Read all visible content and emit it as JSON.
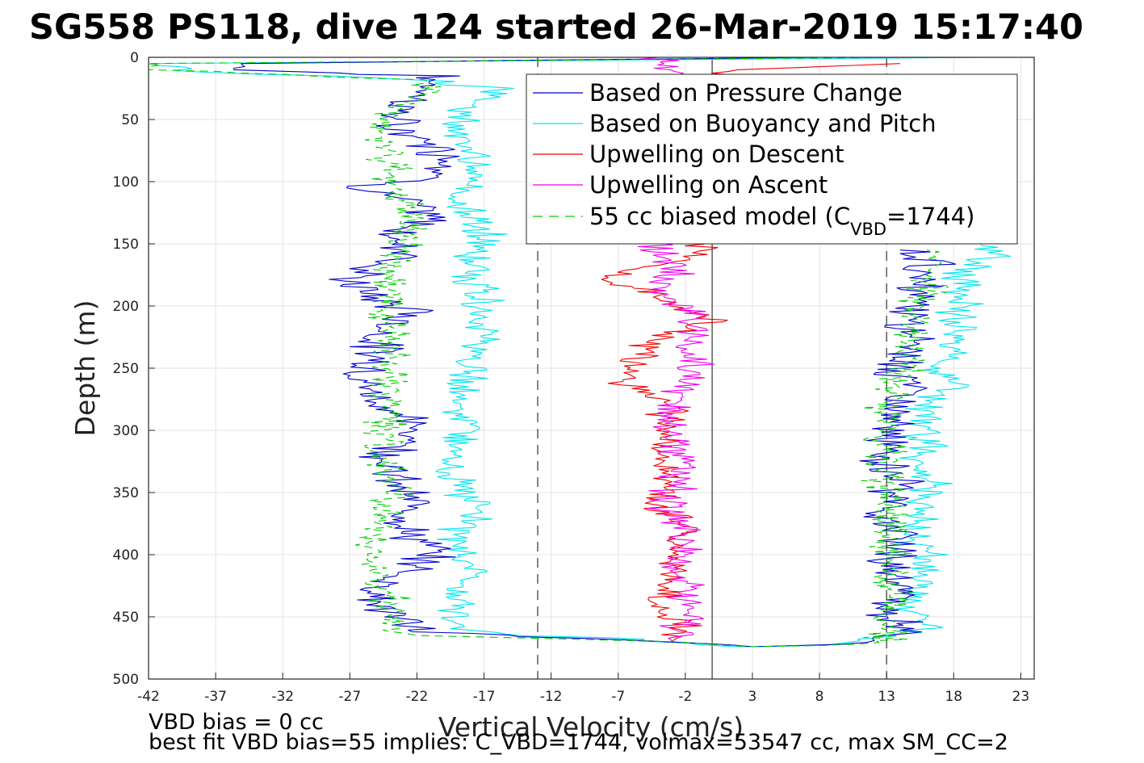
{
  "chart_data": {
    "type": "line",
    "title": "SG558 PS118, dive 124 started 26-Mar-2019 15:17:40",
    "xlabel": "Vertical Velocity (cm/s)",
    "ylabel": "Depth (m)",
    "xlim": [
      -42,
      24
    ],
    "ylim": [
      0,
      500
    ],
    "y_reversed": true,
    "grid": true,
    "xticks": [
      -42,
      -37,
      -32,
      -27,
      -22,
      -17,
      -12,
      -7,
      -2,
      3,
      8,
      13,
      18,
      23
    ],
    "yticks": [
      0,
      50,
      100,
      150,
      200,
      250,
      300,
      350,
      400,
      450,
      500
    ],
    "reference_lines": [
      {
        "name": "descent-target-line",
        "x": -13,
        "style": "dashed"
      },
      {
        "name": "zero-line",
        "x": 0,
        "style": "solid"
      },
      {
        "name": "ascent-target-line",
        "x": 13,
        "style": "dashed"
      }
    ],
    "legend": {
      "placement": "top-right",
      "entries": [
        {
          "label": "Based on Pressure Change",
          "color": "#0000cc",
          "style": "solid"
        },
        {
          "label": "Based on Buoyancy and Pitch",
          "color": "#00e5ee",
          "style": "solid"
        },
        {
          "label": "Upwelling on Descent",
          "color": "#ee0000",
          "style": "solid"
        },
        {
          "label": "Upwelling on Ascent",
          "color": "#ee00ee",
          "style": "solid"
        },
        {
          "label_main": "55 cc biased model (C",
          "label_sub": "VBD",
          "label_tail": "=1744)",
          "color": "#00cc00",
          "style": "dashed"
        }
      ]
    },
    "series": [
      {
        "name": "Based on Pressure Change",
        "color": "#0000cc",
        "dash": false,
        "amp": 1.2,
        "points": [
          [
            8,
            0
          ],
          [
            -35,
            5
          ],
          [
            -35,
            10
          ],
          [
            -21,
            15
          ],
          [
            -21,
            25
          ],
          [
            -23,
            40
          ],
          [
            -24,
            55
          ],
          [
            -21,
            70
          ],
          [
            -19,
            85
          ],
          [
            -20,
            95
          ],
          [
            -26,
            105
          ],
          [
            -23,
            115
          ],
          [
            -21,
            130
          ],
          [
            -24,
            145
          ],
          [
            -22,
            160
          ],
          [
            -26,
            170
          ],
          [
            -27,
            180
          ],
          [
            -25,
            195
          ],
          [
            -22,
            205
          ],
          [
            -24,
            215
          ],
          [
            -25,
            230
          ],
          [
            -25,
            245
          ],
          [
            -26,
            260
          ],
          [
            -25,
            275
          ],
          [
            -23,
            290
          ],
          [
            -22,
            305
          ],
          [
            -24,
            320
          ],
          [
            -24,
            335
          ],
          [
            -23,
            350
          ],
          [
            -22,
            365
          ],
          [
            -23,
            380
          ],
          [
            -21,
            395
          ],
          [
            -22,
            410
          ],
          [
            -24,
            420
          ],
          [
            -25,
            435
          ],
          [
            -24,
            450
          ],
          [
            -21,
            462
          ],
          [
            -14,
            466
          ],
          [
            -3,
            470
          ],
          [
            3,
            474
          ],
          [
            10,
            472
          ],
          [
            13,
            466
          ],
          [
            15,
            458
          ],
          [
            13,
            450
          ],
          [
            14,
            435
          ],
          [
            14,
            420
          ],
          [
            13,
            405
          ],
          [
            14,
            390
          ],
          [
            13,
            375
          ],
          [
            13,
            360
          ],
          [
            14,
            345
          ],
          [
            13,
            330
          ],
          [
            13,
            315
          ],
          [
            13,
            300
          ],
          [
            14,
            285
          ],
          [
            15,
            270
          ],
          [
            14,
            255
          ],
          [
            14,
            240
          ],
          [
            15,
            225
          ],
          [
            14,
            210
          ],
          [
            16,
            195
          ],
          [
            16,
            180
          ],
          [
            16,
            165
          ],
          [
            14,
            155
          ]
        ]
      },
      {
        "name": "Based on Buoyancy and Pitch",
        "color": "#00e5ee",
        "dash": false,
        "amp": 1.0,
        "points": [
          [
            21,
            0
          ],
          [
            -42,
            5
          ],
          [
            -38,
            12
          ],
          [
            -22,
            18
          ],
          [
            -16,
            25
          ],
          [
            -18,
            40
          ],
          [
            -19,
            55
          ],
          [
            -18,
            70
          ],
          [
            -18,
            85
          ],
          [
            -18,
            100
          ],
          [
            -19,
            115
          ],
          [
            -18,
            130
          ],
          [
            -17,
            145
          ],
          [
            -18,
            160
          ],
          [
            -18,
            175
          ],
          [
            -17,
            190
          ],
          [
            -18,
            205
          ],
          [
            -17,
            220
          ],
          [
            -18,
            235
          ],
          [
            -18,
            250
          ],
          [
            -19,
            265
          ],
          [
            -19,
            280
          ],
          [
            -18,
            295
          ],
          [
            -19,
            310
          ],
          [
            -20,
            325
          ],
          [
            -19,
            340
          ],
          [
            -18,
            355
          ],
          [
            -18,
            370
          ],
          [
            -19,
            385
          ],
          [
            -19,
            400
          ],
          [
            -18,
            415
          ],
          [
            -19,
            430
          ],
          [
            -19,
            445
          ],
          [
            -19,
            458
          ],
          [
            -16,
            464
          ],
          [
            -6,
            468
          ],
          [
            2,
            474
          ],
          [
            8,
            473
          ],
          [
            12,
            468
          ],
          [
            16,
            460
          ],
          [
            15,
            445
          ],
          [
            15,
            430
          ],
          [
            16,
            415
          ],
          [
            16,
            400
          ],
          [
            15,
            385
          ],
          [
            15,
            370
          ],
          [
            16,
            355
          ],
          [
            16,
            340
          ],
          [
            15,
            325
          ],
          [
            16,
            310
          ],
          [
            16,
            295
          ],
          [
            16,
            280
          ],
          [
            18,
            265
          ],
          [
            17,
            250
          ],
          [
            18,
            235
          ],
          [
            18,
            220
          ],
          [
            18,
            205
          ],
          [
            19,
            190
          ],
          [
            18,
            175
          ],
          [
            21,
            160
          ],
          [
            20,
            150
          ]
        ]
      },
      {
        "name": "Upwelling on Descent",
        "color": "#ee0000",
        "dash": false,
        "amp": 0.9,
        "points": [
          [
            14,
            5
          ],
          [
            7,
            8
          ],
          [
            1,
            10
          ],
          [
            -1,
            160
          ],
          [
            -6,
            170
          ],
          [
            -8,
            180
          ],
          [
            -4,
            190
          ],
          [
            -3,
            200
          ],
          [
            0,
            210
          ],
          [
            -4,
            225
          ],
          [
            -5,
            240
          ],
          [
            -6,
            255
          ],
          [
            -6,
            265
          ],
          [
            -3,
            280
          ],
          [
            -4,
            300
          ],
          [
            -4,
            320
          ],
          [
            -3,
            340
          ],
          [
            -4,
            360
          ],
          [
            -2,
            380
          ],
          [
            -3,
            400
          ],
          [
            -3,
            420
          ],
          [
            -4,
            440
          ],
          [
            -2,
            460
          ],
          [
            -3,
            470
          ]
        ]
      },
      {
        "name": "Upwelling on Ascent",
        "color": "#ee00ee",
        "dash": false,
        "amp": 1.0,
        "points": [
          [
            -4,
            0
          ],
          [
            -3,
            5
          ],
          [
            -4,
            10
          ],
          [
            -4,
            155
          ],
          [
            -3,
            170
          ],
          [
            -4,
            185
          ],
          [
            -2,
            200
          ],
          [
            -1,
            210
          ],
          [
            -2,
            225
          ],
          [
            -2,
            240
          ],
          [
            -1,
            255
          ],
          [
            -2,
            270
          ],
          [
            -3,
            290
          ],
          [
            -3,
            310
          ],
          [
            -2,
            330
          ],
          [
            -3,
            350
          ],
          [
            -3,
            370
          ],
          [
            -2,
            390
          ],
          [
            -3,
            410
          ],
          [
            -2,
            430
          ],
          [
            -2,
            450
          ],
          [
            -3,
            470
          ]
        ]
      },
      {
        "name": "55 cc biased model",
        "color": "#00cc00",
        "dash": true,
        "amp": 1.0,
        "points": [
          [
            14,
            0
          ],
          [
            -42,
            5
          ],
          [
            -42,
            10
          ],
          [
            -21,
            18
          ],
          [
            -21,
            25
          ],
          [
            -23,
            40
          ],
          [
            -25,
            55
          ],
          [
            -24,
            75
          ],
          [
            -24,
            95
          ],
          [
            -23,
            115
          ],
          [
            -23,
            135
          ],
          [
            -23,
            155
          ],
          [
            -24,
            175
          ],
          [
            -24,
            195
          ],
          [
            -24,
            215
          ],
          [
            -24,
            235
          ],
          [
            -24,
            255
          ],
          [
            -24,
            275
          ],
          [
            -24,
            295
          ],
          [
            -25,
            315
          ],
          [
            -24,
            335
          ],
          [
            -24,
            355
          ],
          [
            -25,
            375
          ],
          [
            -25,
            395
          ],
          [
            -25,
            415
          ],
          [
            -24,
            435
          ],
          [
            -24,
            455
          ],
          [
            -22,
            465
          ],
          [
            -14,
            467
          ],
          [
            -3,
            470
          ],
          [
            3,
            474
          ],
          [
            9,
            473
          ],
          [
            13,
            468
          ],
          [
            13,
            455
          ],
          [
            14,
            440
          ],
          [
            13,
            425
          ],
          [
            13,
            410
          ],
          [
            13,
            395
          ],
          [
            13,
            380
          ],
          [
            13,
            365
          ],
          [
            13,
            350
          ],
          [
            13,
            335
          ],
          [
            13,
            320
          ],
          [
            13,
            305
          ],
          [
            13,
            290
          ],
          [
            13,
            275
          ],
          [
            14,
            260
          ],
          [
            15,
            245
          ],
          [
            14,
            230
          ],
          [
            15,
            215
          ],
          [
            15,
            200
          ],
          [
            16,
            185
          ],
          [
            16,
            170
          ],
          [
            16,
            155
          ]
        ]
      }
    ]
  },
  "footer": {
    "line1": "VBD bias = 0 cc",
    "line2": "best fit VBD bias=55 implies: C_VBD=1744, volmax=53547 cc, max SM_CC=2"
  }
}
